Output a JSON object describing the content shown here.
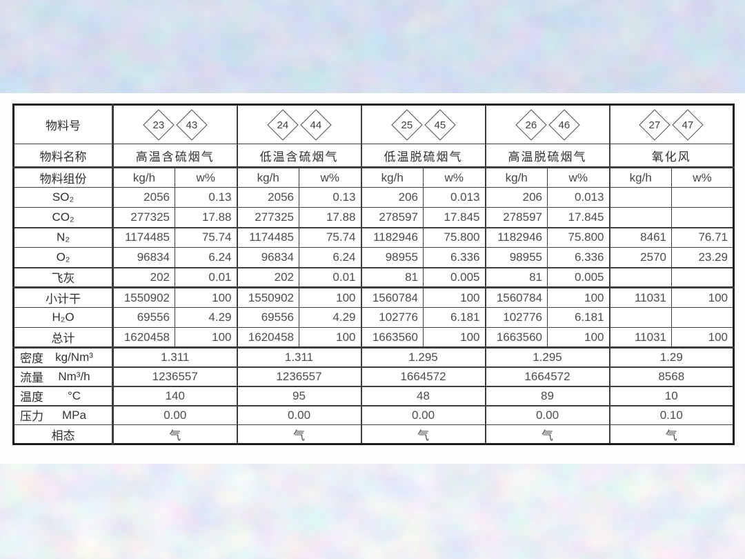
{
  "page": {
    "background_style": "mottled pastel blue-pink texture",
    "panel_color": "#fdfdfd",
    "line_color": "#1c1c1c",
    "text_color": "#3a3a3a"
  },
  "table": {
    "header": {
      "row1_label": "物料号",
      "row2_label": "物料名称",
      "row3_label": "物料组份",
      "kg_unit": "kg/h",
      "w_unit": "w%"
    },
    "sections": [
      {
        "ids": [
          "23",
          "43"
        ],
        "name": "高温含硫烟气"
      },
      {
        "ids": [
          "24",
          "44"
        ],
        "name": "低温含硫烟气"
      },
      {
        "ids": [
          "25",
          "45"
        ],
        "name": "低温脱硫烟气"
      },
      {
        "ids": [
          "26",
          "46"
        ],
        "name": "高温脱硫烟气"
      },
      {
        "ids": [
          "27",
          "47"
        ],
        "name": "氧化风"
      }
    ],
    "component_rows": [
      {
        "label": "SO₂",
        "divider": "thin",
        "cells": [
          "2056",
          "0.13",
          "2056",
          "0.13",
          "206",
          "0.013",
          "206",
          "0.013",
          "",
          ""
        ]
      },
      {
        "label": "CO₂",
        "divider": "thick",
        "cells": [
          "277325",
          "17.88",
          "277325",
          "17.88",
          "278597",
          "17.845",
          "278597",
          "17.845",
          "",
          ""
        ]
      },
      {
        "label": "N₂",
        "divider": "thin",
        "cells": [
          "1174485",
          "75.74",
          "1174485",
          "75.74",
          "1182946",
          "75.800",
          "1182946",
          "75.800",
          "8461",
          "76.71"
        ]
      },
      {
        "label": "O₂",
        "divider": "thick",
        "cells": [
          "96834",
          "6.24",
          "96834",
          "6.24",
          "98955",
          "6.336",
          "98955",
          "6.336",
          "2570",
          "23.29"
        ]
      },
      {
        "label": "飞灰",
        "divider": "heavy",
        "cells": [
          "202",
          "0.01",
          "202",
          "0.01",
          "81",
          "0.005",
          "81",
          "0.005",
          "",
          ""
        ]
      },
      {
        "label": "小计干",
        "divider": "thin",
        "cells": [
          "1550902",
          "100",
          "1550902",
          "100",
          "1560784",
          "100",
          "1560784",
          "100",
          "11031",
          "100"
        ]
      },
      {
        "label": "H₂O",
        "divider": "thin",
        "cells": [
          "69556",
          "4.29",
          "69556",
          "4.29",
          "102776",
          "6.181",
          "102776",
          "6.181",
          "",
          ""
        ]
      },
      {
        "label": "总计",
        "divider": "heavy",
        "cells": [
          "1620458",
          "100",
          "1620458",
          "100",
          "1663560",
          "100",
          "1663560",
          "100",
          "11031",
          "100"
        ]
      }
    ],
    "property_rows": [
      {
        "label": "密度",
        "unit": "kg/Nm³",
        "divider": "thick",
        "values": [
          "1.311",
          "1.311",
          "1.295",
          "1.295",
          "1.29"
        ]
      },
      {
        "label": "流量",
        "unit": "Nm³/h",
        "divider": "thick",
        "values": [
          "1236557",
          "1236557",
          "1664572",
          "1664572",
          "8568"
        ]
      },
      {
        "label": "温度",
        "unit": "°C",
        "divider": "thick",
        "values": [
          "140",
          "95",
          "48",
          "89",
          "10"
        ]
      },
      {
        "label": "压力",
        "unit": "MPa",
        "divider": "thin",
        "values": [
          "0.00",
          "0.00",
          "0.00",
          "0.00",
          "0.10"
        ]
      },
      {
        "label": "相态",
        "unit": "",
        "divider": "thin",
        "values": [
          "气",
          "气",
          "气",
          "气",
          "气"
        ]
      }
    ]
  }
}
